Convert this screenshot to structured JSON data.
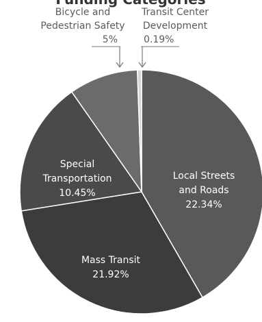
{
  "chart_data": {
    "type": "pie",
    "title": "",
    "clipped_title_fragment": "Funding Categories",
    "slices": [
      {
        "label": "Local Streets and Roads",
        "label_lines": [
          "Local Streets",
          "and Roads"
        ],
        "value_text": "22.34%",
        "value": 22.34
      },
      {
        "label": "Mass Transit",
        "label_lines": [
          "Mass Transit"
        ],
        "value_text": "21.92%",
        "value": 21.92
      },
      {
        "label": "Special Transportation",
        "label_lines": [
          "Special",
          "Transportation"
        ],
        "value_text": "10.45%",
        "value": 10.45
      },
      {
        "label": "Bicycle and Pedestrian Safety",
        "label_lines": [
          "Bicycle and",
          "Pedestrian Safety"
        ],
        "value_text": "5%",
        "value": 5
      },
      {
        "label": "Transit Center Development",
        "label_lines": [
          "Transit Center",
          "Development"
        ],
        "value_text": "0.19%",
        "value": 0.19
      }
    ],
    "colors": [
      "#595959",
      "#3c3c3c",
      "#4a4a4a",
      "#6b6b6b",
      "#d6d6d6"
    ],
    "label_text_color": "#ffffff",
    "callout_text_color": "#5a5a5a"
  }
}
